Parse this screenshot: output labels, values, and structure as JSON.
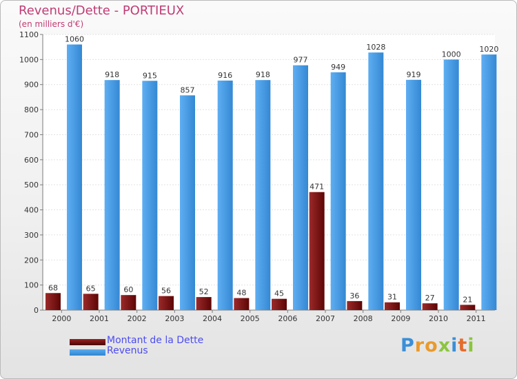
{
  "header": {
    "title": "Revenus/Dette - PORTIEUX",
    "subtitle": "(en milliers d'€)"
  },
  "chart_data": {
    "type": "bar",
    "title": "Revenus/Dette - PORTIEUX",
    "ylabel": "(en milliers d'€)",
    "categories": [
      "2000",
      "2001",
      "2002",
      "2003",
      "2004",
      "2005",
      "2006",
      "2007",
      "2008",
      "2009",
      "2010",
      "2011"
    ],
    "series": [
      {
        "name": "Montant de la Dette",
        "color": "#7a0c0c",
        "values": [
          68,
          65,
          60,
          56,
          52,
          48,
          45,
          471,
          36,
          31,
          27,
          21
        ]
      },
      {
        "name": "Revenus",
        "color": "#3d95dc",
        "values": [
          1060,
          918,
          915,
          857,
          916,
          918,
          977,
          949,
          1028,
          919,
          1000,
          1020
        ]
      }
    ],
    "ylim": [
      0,
      1100
    ],
    "yticks": [
      0,
      100,
      200,
      300,
      400,
      500,
      600,
      700,
      800,
      900,
      1000,
      1100
    ],
    "grid": true,
    "legend_position": "bottom-left"
  },
  "legend": {
    "items": [
      {
        "label": "Montant de la Dette",
        "color": "#7a0c0c"
      },
      {
        "label": "Revenus",
        "color": "#3d95dc"
      }
    ]
  },
  "brand": {
    "letters": [
      "P",
      "r",
      "o",
      "x",
      "i",
      "t",
      "i"
    ],
    "colors": [
      "#3a8fd8",
      "#e99a2c",
      "#e99a2c",
      "#8bc53f",
      "#3a8fd8",
      "#e46c2c",
      "#8bc53f"
    ]
  }
}
